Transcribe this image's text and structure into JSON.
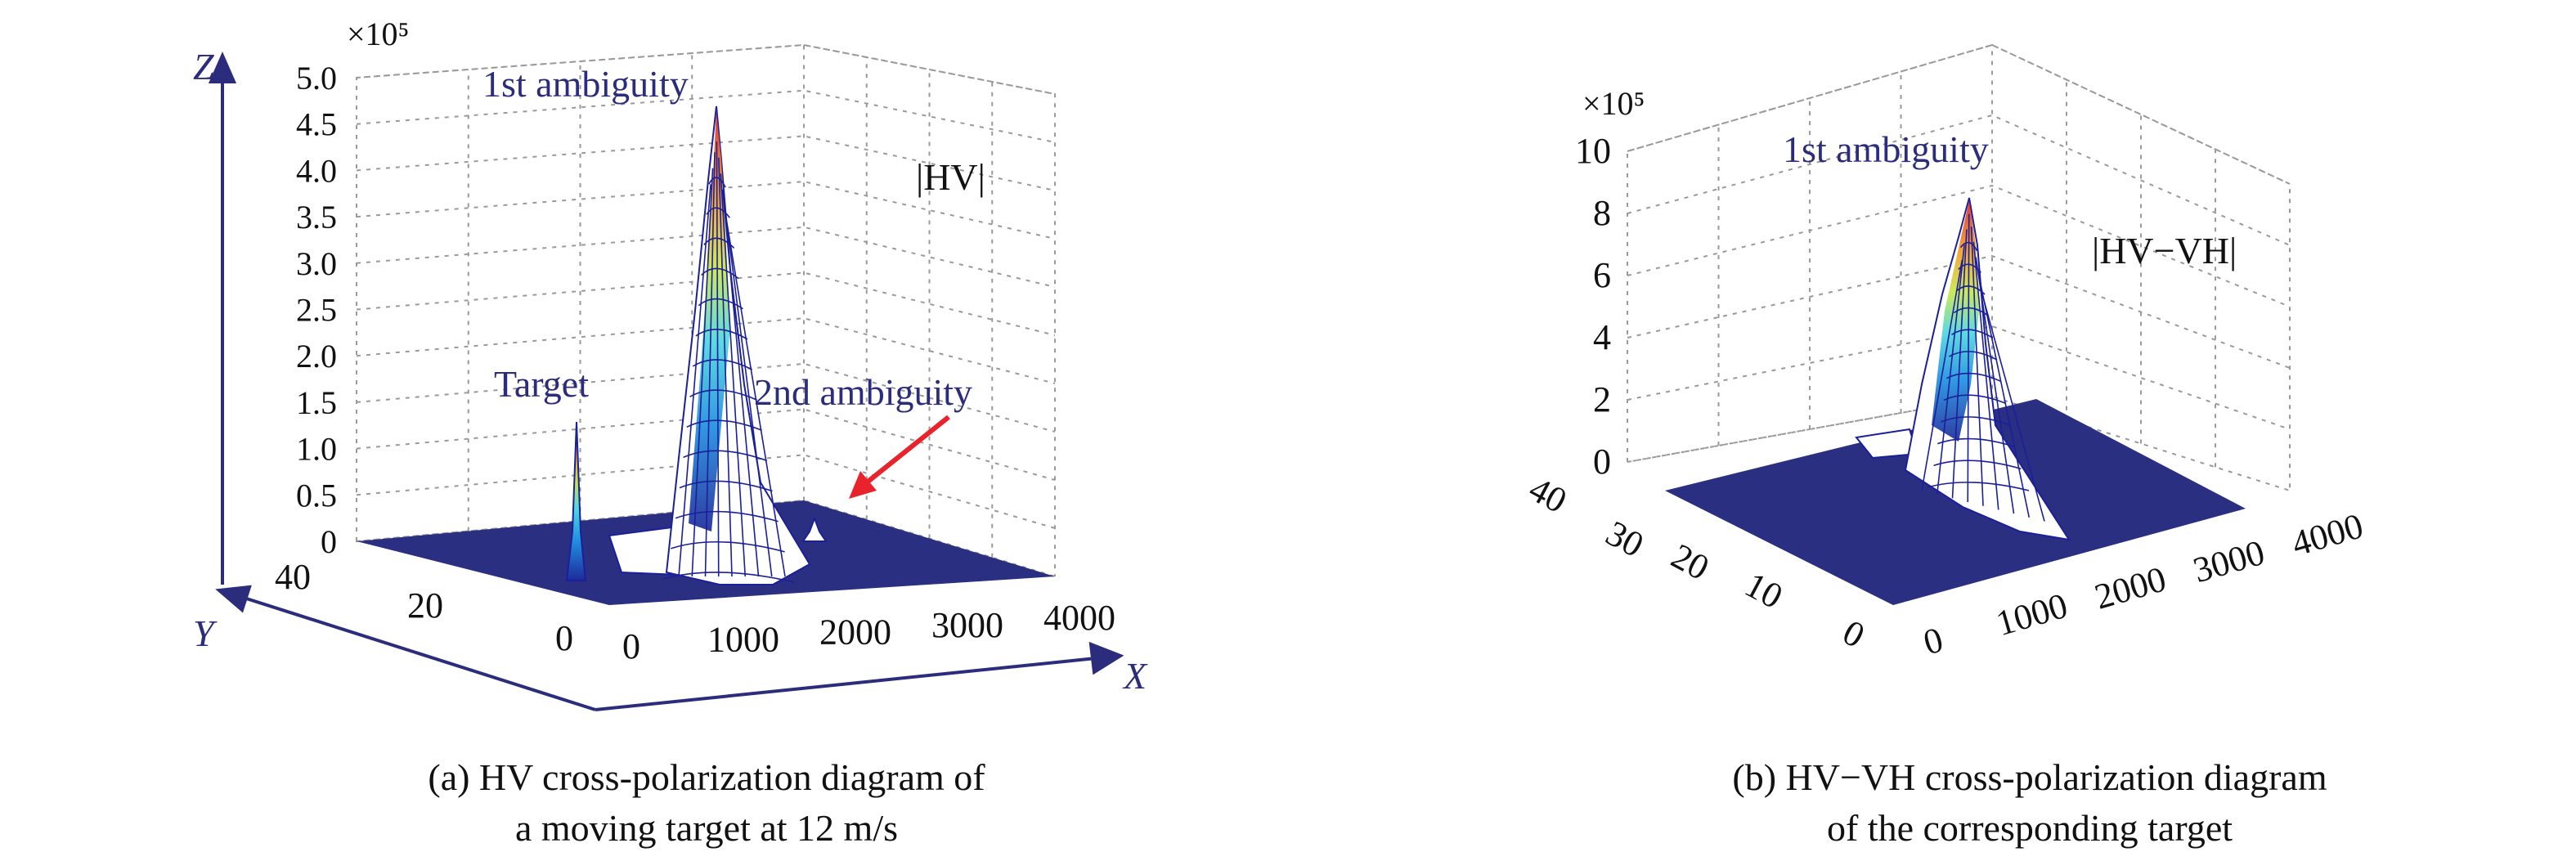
{
  "chart_data": [
    {
      "type": "surface",
      "caption_line1": "(a) HV cross-polarization diagram of",
      "caption_line2": "a moving target at 12 m/s",
      "z_multiplier": "×10⁵",
      "surface_label": "|HV|",
      "xlabel": "X",
      "ylabel": "Y",
      "zlabel": "Z",
      "x_ticks": [
        "0",
        "1000",
        "2000",
        "3000",
        "4000"
      ],
      "y_ticks": [
        "0",
        "20",
        "40"
      ],
      "z_ticks": [
        "0",
        "0.5",
        "1.0",
        "1.5",
        "2.0",
        "2.5",
        "3.0",
        "3.5",
        "4.0",
        "4.5",
        "5.0"
      ],
      "xlim": [
        0,
        4000
      ],
      "ylim": [
        0,
        40
      ],
      "zlim": [
        0,
        5.0
      ],
      "grid": true,
      "peaks": [
        {
          "name": "Target",
          "x": 0,
          "y": 20,
          "z": 1.35
        },
        {
          "name": "1st ambiguity",
          "x": 1100,
          "y": 18,
          "z": 4.65
        },
        {
          "name": "2nd ambiguity",
          "x": 2200,
          "y": 20,
          "z": 0.22
        }
      ],
      "annotations": [
        "Target",
        "1st ambiguity",
        "2nd ambiguity"
      ]
    },
    {
      "type": "surface",
      "caption_line1": "(b) HV−VH cross-polarization diagram",
      "caption_line2": "of the corresponding target",
      "z_multiplier": "×10⁵",
      "surface_label": "|HV−VH|",
      "x_ticks": [
        "0",
        "1000",
        "2000",
        "3000",
        "4000"
      ],
      "y_ticks": [
        "0",
        "10",
        "20",
        "30",
        "40"
      ],
      "z_ticks": [
        "0",
        "2",
        "4",
        "6",
        "8",
        "10"
      ],
      "xlim": [
        0,
        4000
      ],
      "ylim": [
        0,
        40
      ],
      "zlim": [
        0,
        10
      ],
      "grid": true,
      "peaks": [
        {
          "name": "1st ambiguity",
          "x": 1100,
          "y": 20,
          "z": 8.4
        }
      ],
      "annotations": [
        "1st ambiguity"
      ]
    }
  ],
  "colors": {
    "axis_label": "#2b2d7c",
    "annotation": "#2b2d7c",
    "floor": "#2b2f82",
    "mesh": "#1b1f9a",
    "arrow": "#e8232b",
    "grid": "#9a9a9a"
  }
}
